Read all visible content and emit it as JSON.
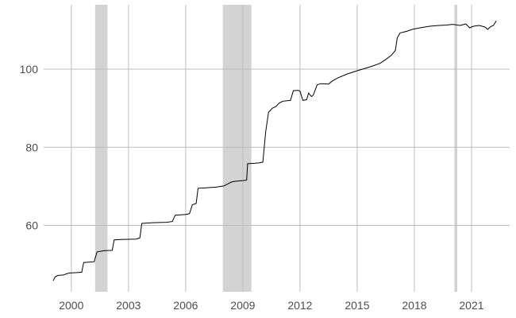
{
  "chart_data": {
    "type": "line",
    "title": "",
    "xlabel": "",
    "ylabel": "",
    "x_ticks": [
      {
        "value": 2000,
        "label": "2000"
      },
      {
        "value": 2003,
        "label": "2003"
      },
      {
        "value": 2006,
        "label": "2006"
      },
      {
        "value": 2009,
        "label": "2009"
      },
      {
        "value": 2012,
        "label": "2012"
      },
      {
        "value": 2015,
        "label": "2015"
      },
      {
        "value": 2018,
        "label": "2018"
      },
      {
        "value": 2021,
        "label": "2021"
      }
    ],
    "y_ticks": [
      {
        "value": 60,
        "label": "60"
      },
      {
        "value": 80,
        "label": "80"
      },
      {
        "value": 100,
        "label": "100"
      }
    ],
    "xlim": [
      1998.55,
      2023.0
    ],
    "ylim": [
      43.0,
      116.5
    ],
    "grid": true,
    "legend": "none",
    "colors": {
      "line": "#000000",
      "grid": "#bdbdbd",
      "shading": "#d3d3d3",
      "tick_label": "#4d4d4d",
      "background": "#ffffff"
    },
    "shaded_periods": [
      {
        "start": 2001.25,
        "end": 2001.9
      },
      {
        "start": 2007.95,
        "end": 2009.45
      },
      {
        "start": 2020.1,
        "end": 2020.25
      }
    ],
    "series": [
      {
        "points": [
          [
            1999.05,
            45.8
          ],
          [
            1999.15,
            46.8
          ],
          [
            1999.3,
            47.2
          ],
          [
            1999.6,
            47.3
          ],
          [
            1999.75,
            47.6
          ],
          [
            1999.9,
            47.8
          ],
          [
            2000.3,
            47.9
          ],
          [
            2000.55,
            48.0
          ],
          [
            2000.65,
            50.5
          ],
          [
            2000.9,
            50.6
          ],
          [
            2001.2,
            50.7
          ],
          [
            2001.35,
            53.2
          ],
          [
            2001.7,
            53.5
          ],
          [
            2002.15,
            53.6
          ],
          [
            2002.25,
            56.3
          ],
          [
            2002.6,
            56.4
          ],
          [
            2003.4,
            56.5
          ],
          [
            2003.6,
            56.8
          ],
          [
            2003.7,
            60.5
          ],
          [
            2004.3,
            60.7
          ],
          [
            2005.0,
            60.8
          ],
          [
            2005.3,
            61.0
          ],
          [
            2005.45,
            62.6
          ],
          [
            2006.0,
            62.8
          ],
          [
            2006.2,
            63.0
          ],
          [
            2006.35,
            65.3
          ],
          [
            2006.55,
            65.6
          ],
          [
            2006.65,
            69.5
          ],
          [
            2007.0,
            69.6
          ],
          [
            2007.6,
            69.8
          ],
          [
            2008.0,
            70.1
          ],
          [
            2008.4,
            71.1
          ],
          [
            2008.6,
            71.3
          ],
          [
            2009.1,
            71.5
          ],
          [
            2009.2,
            71.6
          ],
          [
            2009.25,
            75.8
          ],
          [
            2009.6,
            75.9
          ],
          [
            2009.85,
            76.0
          ],
          [
            2010.05,
            76.2
          ],
          [
            2010.2,
            84.0
          ],
          [
            2010.35,
            89.0
          ],
          [
            2010.55,
            90.0
          ],
          [
            2010.75,
            90.5
          ],
          [
            2010.9,
            91.3
          ],
          [
            2011.1,
            91.8
          ],
          [
            2011.5,
            92.0
          ],
          [
            2011.65,
            94.5
          ],
          [
            2011.9,
            94.6
          ],
          [
            2012.0,
            94.4
          ],
          [
            2012.15,
            92.0
          ],
          [
            2012.35,
            92.2
          ],
          [
            2012.45,
            93.9
          ],
          [
            2012.6,
            93.0
          ],
          [
            2012.7,
            93.4
          ],
          [
            2012.9,
            96.0
          ],
          [
            2013.1,
            96.3
          ],
          [
            2013.5,
            96.2
          ],
          [
            2013.7,
            97.0
          ],
          [
            2014.0,
            97.8
          ],
          [
            2014.5,
            98.8
          ],
          [
            2015.0,
            99.6
          ],
          [
            2015.4,
            100.2
          ],
          [
            2015.8,
            100.8
          ],
          [
            2016.2,
            101.5
          ],
          [
            2016.5,
            102.5
          ],
          [
            2016.8,
            103.6
          ],
          [
            2017.0,
            104.8
          ],
          [
            2017.1,
            108.0
          ],
          [
            2017.25,
            109.3
          ],
          [
            2017.6,
            109.7
          ],
          [
            2017.9,
            110.2
          ],
          [
            2018.3,
            110.6
          ],
          [
            2018.8,
            111.0
          ],
          [
            2019.3,
            111.2
          ],
          [
            2019.7,
            111.3
          ],
          [
            2020.0,
            111.5
          ],
          [
            2020.4,
            111.2
          ],
          [
            2020.7,
            111.6
          ],
          [
            2020.9,
            110.6
          ],
          [
            2021.1,
            111.0
          ],
          [
            2021.4,
            111.2
          ],
          [
            2021.7,
            110.8
          ],
          [
            2021.85,
            110.2
          ],
          [
            2022.0,
            110.9
          ],
          [
            2022.15,
            111.2
          ],
          [
            2022.3,
            112.4
          ]
        ]
      }
    ]
  }
}
